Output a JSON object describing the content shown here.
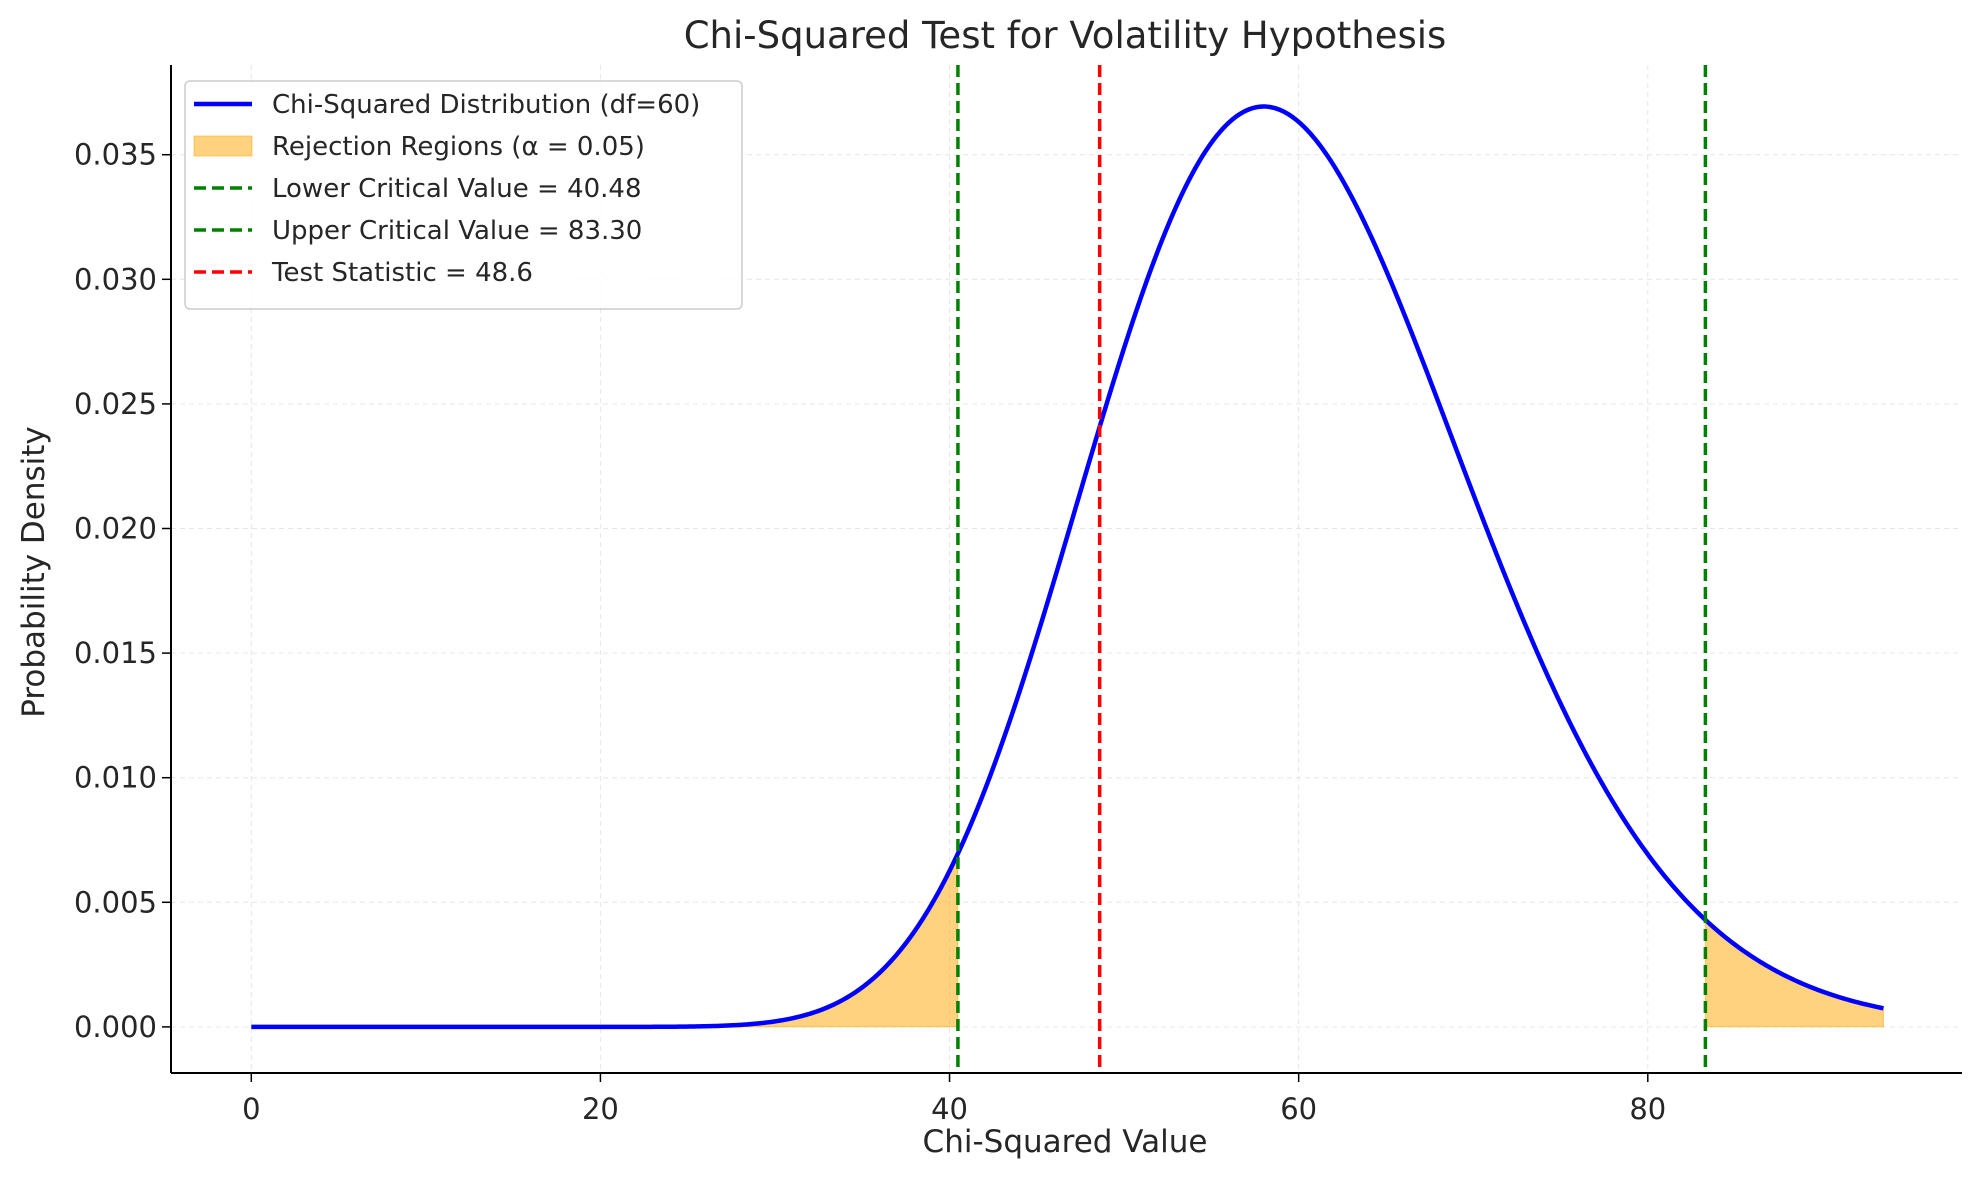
{
  "chart_data": {
    "type": "line",
    "title": "Chi-Squared Test for Volatility Hypothesis",
    "xlabel": "Chi-Squared Value",
    "ylabel": "Probability Density",
    "xlim": [
      -4.6,
      98
    ],
    "ylim": [
      -0.00185,
      0.0386
    ],
    "xticks": [
      0,
      20,
      40,
      60,
      80
    ],
    "yticks": [
      0.0,
      0.005,
      0.01,
      0.015,
      0.02,
      0.025,
      0.03,
      0.035
    ],
    "xtick_labels": [
      "0",
      "20",
      "40",
      "60",
      "80"
    ],
    "ytick_labels": [
      "0.000",
      "0.005",
      "0.010",
      "0.015",
      "0.020",
      "0.025",
      "0.030",
      "0.035"
    ],
    "grid": true,
    "legend_position": "top-left",
    "series": [
      {
        "name": "Chi-Squared Distribution (df=60)",
        "kind": "line",
        "df": 60,
        "x_range": [
          0,
          93.5
        ],
        "color": "#0000ff"
      },
      {
        "name": "Rejection Regions (α = 0.05)",
        "kind": "fill",
        "color": "#ffa500",
        "regions": [
          [
            0,
            40.48
          ],
          [
            83.3,
            93.5
          ]
        ]
      },
      {
        "name": "Lower Critical Value = 40.48",
        "kind": "vline",
        "x": 40.48,
        "color": "#008000"
      },
      {
        "name": "Upper Critical Value = 83.30",
        "kind": "vline",
        "x": 83.3,
        "color": "#008000"
      },
      {
        "name": "Test Statistic = 48.6",
        "kind": "vline",
        "x": 48.6,
        "color": "#ff0000"
      }
    ]
  }
}
